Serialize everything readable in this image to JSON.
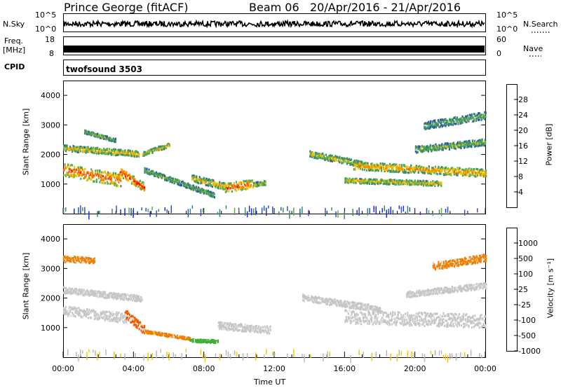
{
  "header": {
    "station": "Prince George (fitACF)",
    "beam": "Beam 06",
    "date_range": "20/Apr/2016 - 21/Apr/2016"
  },
  "nsky_panel": {
    "label": "N.Sky",
    "right_label": "N.Search",
    "left_ticks": [
      "10^5",
      "10^0"
    ],
    "right_ticks": [
      "10^5",
      "10^0"
    ]
  },
  "freq_panel": {
    "label_line1": "Freq.",
    "label_line2": "[MHz]",
    "right_label": "Nave",
    "left_ticks": [
      "18",
      "8"
    ],
    "right_ticks": [
      "60",
      "0"
    ]
  },
  "cpid": {
    "label": "CPID",
    "program": "twofsound 3503"
  },
  "chart_data": [
    {
      "type": "heatmap",
      "name": "power",
      "ylabel": "Slant Range [km]",
      "xlabel": "",
      "ylim": [
        0,
        4500
      ],
      "xlim_hours": [
        0,
        24
      ],
      "yticks": [
        1000,
        2000,
        3000,
        4000
      ],
      "colorbar": {
        "label": "Power [dB]",
        "ticks": [
          "4",
          "8",
          "12",
          "16",
          "20",
          "24",
          "28"
        ],
        "colors": [
          "#1a28ff",
          "#2c58b0",
          "#3c8a68",
          "#5aab50",
          "#f2c100",
          "#f09000",
          "#ef5500",
          "#e81000"
        ]
      },
      "bands": [
        {
          "from_h": 0.0,
          "to_h": 3.3,
          "start_km": 1520,
          "end_km": 1150,
          "width_km": 420,
          "level": 0.85
        },
        {
          "from_h": 0.0,
          "to_h": 4.3,
          "start_km": 2250,
          "end_km": 2050,
          "width_km": 200,
          "level": 0.6
        },
        {
          "from_h": 1.2,
          "to_h": 3.0,
          "start_km": 2800,
          "end_km": 2500,
          "width_km": 120,
          "level": 0.45
        },
        {
          "from_h": 3.2,
          "to_h": 4.6,
          "start_km": 1450,
          "end_km": 900,
          "width_km": 300,
          "level": 0.95
        },
        {
          "from_h": 4.5,
          "to_h": 6.0,
          "start_km": 2050,
          "end_km": 2350,
          "width_km": 140,
          "level": 0.55
        },
        {
          "from_h": 4.6,
          "to_h": 8.6,
          "start_km": 1500,
          "end_km": 650,
          "width_km": 160,
          "level": 0.45
        },
        {
          "from_h": 7.3,
          "to_h": 9.2,
          "start_km": 1230,
          "end_km": 950,
          "width_km": 230,
          "level": 0.6
        },
        {
          "from_h": 9.2,
          "to_h": 10.8,
          "start_km": 900,
          "end_km": 1050,
          "width_km": 300,
          "level": 0.9
        },
        {
          "from_h": 10.8,
          "to_h": 11.5,
          "start_km": 1000,
          "end_km": 1080,
          "width_km": 160,
          "level": 0.55
        },
        {
          "from_h": 14.0,
          "to_h": 17.0,
          "start_km": 2050,
          "end_km": 1700,
          "width_km": 200,
          "level": 0.55
        },
        {
          "from_h": 16.5,
          "to_h": 24.0,
          "start_km": 1650,
          "end_km": 1400,
          "width_km": 260,
          "level": 0.7
        },
        {
          "from_h": 16.0,
          "to_h": 21.5,
          "start_km": 1150,
          "end_km": 1050,
          "width_km": 160,
          "level": 0.6
        },
        {
          "from_h": 20.0,
          "to_h": 24.0,
          "start_km": 2200,
          "end_km": 2450,
          "width_km": 220,
          "level": 0.45
        },
        {
          "from_h": 20.5,
          "to_h": 24.0,
          "start_km": 3000,
          "end_km": 3350,
          "width_km": 250,
          "level": 0.4
        }
      ]
    },
    {
      "type": "heatmap",
      "name": "velocity",
      "ylabel": "Slant Range [km]",
      "xlabel": "Time UT",
      "ylim": [
        0,
        4500
      ],
      "xlim_hours": [
        0,
        24
      ],
      "yticks": [
        1000,
        2000,
        3000,
        4000
      ],
      "xtick_labels": [
        "00:00",
        "04:00",
        "08:00",
        "12:00",
        "16:00",
        "20:00",
        "00:00"
      ],
      "colorbar": {
        "label": "Velocity [m s⁻¹]",
        "ticks": [
          "1000",
          "500",
          "100",
          "25",
          "-25",
          "-100",
          "-500",
          "-1000"
        ],
        "colors": [
          "#2040c8",
          "#2b7a58",
          "#40c020",
          "#a6a6a6",
          "#d4d4d4",
          "#f2c800",
          "#f08000",
          "#e81000"
        ]
      },
      "bands": [
        {
          "from_h": 0.0,
          "to_h": 3.6,
          "start_km": 1600,
          "end_km": 1350,
          "width_km": 330,
          "color": "#c6c6c6"
        },
        {
          "from_h": 0.0,
          "to_h": 4.5,
          "start_km": 2300,
          "end_km": 2000,
          "width_km": 200,
          "color": "#c6c6c6"
        },
        {
          "from_h": 3.5,
          "to_h": 4.6,
          "start_km": 1500,
          "end_km": 950,
          "width_km": 300,
          "color": "#f05a00"
        },
        {
          "from_h": 4.6,
          "to_h": 7.2,
          "start_km": 900,
          "end_km": 650,
          "width_km": 90,
          "color": "#f08000"
        },
        {
          "from_h": 7.2,
          "to_h": 8.8,
          "start_km": 600,
          "end_km": 560,
          "width_km": 100,
          "color": "#40b030"
        },
        {
          "from_h": 8.8,
          "to_h": 11.8,
          "start_km": 1100,
          "end_km": 950,
          "width_km": 250,
          "color": "#c6c6c6"
        },
        {
          "from_h": 13.6,
          "to_h": 18.0,
          "start_km": 2050,
          "end_km": 1650,
          "width_km": 220,
          "color": "#c6c6c6"
        },
        {
          "from_h": 16.0,
          "to_h": 24.0,
          "start_km": 1400,
          "end_km": 1250,
          "width_km": 450,
          "color": "#c6c6c6"
        },
        {
          "from_h": 19.5,
          "to_h": 24.0,
          "start_km": 2150,
          "end_km": 2450,
          "width_km": 200,
          "color": "#c6c6c6"
        },
        {
          "from_h": 0.0,
          "to_h": 1.8,
          "start_km": 3350,
          "end_km": 3300,
          "width_km": 200,
          "color": "#f08000"
        },
        {
          "from_h": 21.0,
          "to_h": 24.0,
          "start_km": 3100,
          "end_km": 3400,
          "width_km": 250,
          "color": "#f08000"
        }
      ]
    }
  ]
}
